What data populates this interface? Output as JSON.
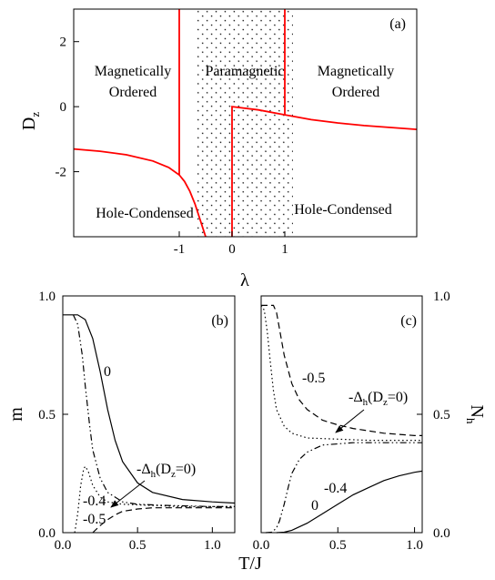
{
  "chart_data": [
    {
      "type": "line",
      "panel_label": "(a)",
      "xlabel": "λ",
      "ylabel": "D",
      "ylabel_sub": "z",
      "xlim": [
        -3.0,
        3.5
      ],
      "ylim": [
        -4.0,
        3.0
      ],
      "xticks": [
        -1,
        0,
        1
      ],
      "xtick_labels": [
        "-1",
        "0",
        "1"
      ],
      "yticks": [
        2,
        0,
        -2
      ],
      "ytick_labels": [
        "2",
        "0",
        "-2"
      ],
      "shaded_region": {
        "x": [
          -1,
          1
        ],
        "pattern": "dots"
      },
      "regions": [
        "Magnetically",
        "Ordered",
        "Paramagnetic",
        "Magnetically",
        "Ordered",
        "Hole-Condensed",
        "Hole-Condensed"
      ],
      "series": [
        {
          "color": "#ff0000",
          "x": [
            -3.0,
            -2.5,
            -2.0,
            -1.5,
            -1.2,
            -1.0,
            -0.9,
            -0.8,
            -0.7,
            -0.6,
            -0.5
          ],
          "y": [
            -1.3,
            -1.37,
            -1.48,
            -1.67,
            -1.87,
            -2.1,
            -2.3,
            -2.6,
            -3.0,
            -3.5,
            -4.0
          ]
        },
        {
          "color": "#ff0000",
          "x": [
            0,
            0,
            0.5,
            1.0,
            1.5,
            2.0,
            2.5,
            3.0,
            3.5
          ],
          "y": [
            -4.0,
            0.0,
            -0.1,
            -0.25,
            -0.4,
            -0.5,
            -0.58,
            -0.64,
            -0.7
          ]
        },
        {
          "color": "#ff0000",
          "x": [
            -1,
            -1
          ],
          "y": [
            -2.1,
            3.0
          ]
        },
        {
          "color": "#ff0000",
          "x": [
            1,
            1
          ],
          "y": [
            -0.25,
            3.0
          ]
        }
      ]
    },
    {
      "type": "line",
      "panel_label": "(b)",
      "xlabel": "",
      "ylabel": "m",
      "xlim": [
        0.0,
        1.15
      ],
      "ylim": [
        0.0,
        1.0
      ],
      "xticks": [
        0.0,
        0.5,
        1.0
      ],
      "xtick_labels": [
        "0.0",
        "0.5",
        "1.0"
      ],
      "yticks": [
        0.0,
        0.5,
        1.0
      ],
      "ytick_labels": [
        "0.0",
        "0.5",
        "1.0"
      ],
      "annotation": {
        "text": "-Δ",
        "sub": "h",
        "tail": "(D",
        "tail_sub": "z",
        "end": "=0)"
      },
      "series": [
        {
          "name": "0",
          "dash": "solid",
          "x": [
            0.0,
            0.1,
            0.15,
            0.2,
            0.25,
            0.3,
            0.35,
            0.4,
            0.5,
            0.6,
            0.8,
            1.0,
            1.15
          ],
          "y": [
            0.92,
            0.92,
            0.9,
            0.82,
            0.68,
            0.52,
            0.39,
            0.3,
            0.21,
            0.17,
            0.14,
            0.13,
            0.125
          ]
        },
        {
          "name": "-0.4",
          "dash": "dashdotdot",
          "x": [
            0.07,
            0.1,
            0.13,
            0.15,
            0.18,
            0.2,
            0.25,
            0.3,
            0.4,
            0.5,
            0.7,
            1.0,
            1.15
          ],
          "y": [
            0.92,
            0.88,
            0.75,
            0.62,
            0.45,
            0.35,
            0.23,
            0.17,
            0.13,
            0.12,
            0.115,
            0.11,
            0.11
          ]
        },
        {
          "name": "-0.5",
          "dash": "dashed",
          "x": [
            0.2,
            0.25,
            0.3,
            0.35,
            0.4,
            0.5,
            0.6,
            0.8,
            1.0,
            1.15
          ],
          "y": [
            0.0,
            0.03,
            0.055,
            0.075,
            0.09,
            0.1,
            0.105,
            0.105,
            0.105,
            0.105
          ]
        },
        {
          "name": "-Δh(Dz=0)",
          "dash": "dotted",
          "x": [
            0.08,
            0.1,
            0.12,
            0.14,
            0.15,
            0.17,
            0.2,
            0.25,
            0.3,
            0.4,
            0.6,
            0.8,
            1.0,
            1.15
          ],
          "y": [
            0.0,
            0.08,
            0.2,
            0.27,
            0.28,
            0.26,
            0.2,
            0.15,
            0.13,
            0.12,
            0.115,
            0.11,
            0.11,
            0.11
          ]
        }
      ]
    },
    {
      "type": "line",
      "panel_label": "(c)",
      "xlabel": "T/J",
      "ylabel": "N",
      "ylabel_sub": "h",
      "xlim": [
        0.0,
        1.05
      ],
      "ylim": [
        0.0,
        1.0
      ],
      "xticks": [
        0.0,
        0.5,
        1.0
      ],
      "xtick_labels": [
        "0.0",
        "0.5",
        "1.0"
      ],
      "yticks": [
        0.0,
        0.5,
        1.0
      ],
      "ytick_labels": [
        "0.0",
        "0.5",
        "1.0"
      ],
      "annotation": {
        "text": "-Δ",
        "sub": "h",
        "tail": "(D",
        "tail_sub": "z",
        "end": "=0)"
      },
      "series": [
        {
          "name": "0",
          "dash": "solid",
          "x": [
            0.1,
            0.15,
            0.2,
            0.3,
            0.4,
            0.5,
            0.6,
            0.7,
            0.8,
            0.9,
            1.0,
            1.05
          ],
          "y": [
            0.0,
            0.002,
            0.01,
            0.04,
            0.08,
            0.12,
            0.16,
            0.19,
            0.22,
            0.24,
            0.255,
            0.26
          ]
        },
        {
          "name": "-0.4",
          "dash": "dashdotdot",
          "x": [
            0.03,
            0.07,
            0.1,
            0.12,
            0.15,
            0.18,
            0.2,
            0.25,
            0.3,
            0.4,
            0.6,
            0.8,
            1.0,
            1.05
          ],
          "y": [
            0.0,
            0.002,
            0.02,
            0.05,
            0.12,
            0.2,
            0.25,
            0.31,
            0.34,
            0.37,
            0.38,
            0.38,
            0.38,
            0.38
          ]
        },
        {
          "name": "-0.5",
          "dash": "dashed",
          "x": [
            0.0,
            0.08,
            0.1,
            0.12,
            0.15,
            0.2,
            0.25,
            0.3,
            0.4,
            0.5,
            0.6,
            0.8,
            1.0,
            1.05
          ],
          "y": [
            0.96,
            0.96,
            0.93,
            0.86,
            0.75,
            0.63,
            0.56,
            0.52,
            0.475,
            0.455,
            0.44,
            0.42,
            0.41,
            0.41
          ]
        },
        {
          "name": "-Δh(Dz=0)",
          "dash": "dotted",
          "x": [
            0.0,
            0.02,
            0.04,
            0.06,
            0.08,
            0.1,
            0.15,
            0.2,
            0.3,
            0.5,
            0.7,
            1.0,
            1.05
          ],
          "y": [
            0.96,
            0.94,
            0.85,
            0.72,
            0.6,
            0.52,
            0.45,
            0.42,
            0.4,
            0.395,
            0.39,
            0.39,
            0.39
          ]
        }
      ]
    }
  ]
}
